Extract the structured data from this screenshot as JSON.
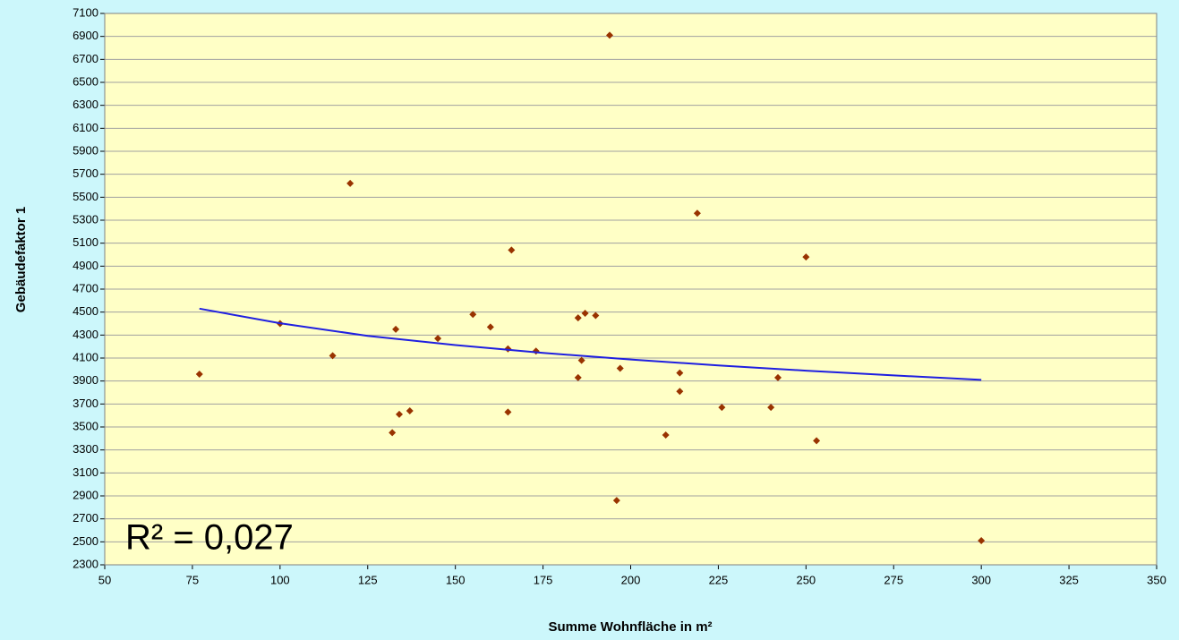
{
  "chart_data": {
    "type": "scatter",
    "xlabel": "Summe Wohnfläche in m²",
    "ylabel": "Gebäudefaktor 1",
    "annotation": "R² = 0,027",
    "xlim": [
      50,
      350
    ],
    "xticks": [
      50,
      75,
      100,
      125,
      150,
      175,
      200,
      225,
      250,
      275,
      300,
      325,
      350
    ],
    "ylim": [
      2300,
      7100
    ],
    "yticks": [
      2300,
      2500,
      2700,
      2900,
      3100,
      3300,
      3500,
      3700,
      3900,
      4100,
      4300,
      4500,
      4700,
      4900,
      5100,
      5300,
      5500,
      5700,
      5900,
      6100,
      6300,
      6500,
      6700,
      6900,
      7100
    ],
    "grid": true,
    "points": {
      "color": "#993300",
      "x": [
        77,
        100,
        115,
        120,
        132,
        133,
        134,
        137,
        145,
        155,
        160,
        165,
        165,
        166,
        173,
        185,
        185,
        186,
        187,
        190,
        194,
        196,
        197,
        210,
        214,
        214,
        219,
        226,
        240,
        242,
        250,
        253,
        300
      ],
      "values": [
        3960,
        4400,
        4120,
        5620,
        3450,
        4350,
        3610,
        3640,
        4270,
        4480,
        4370,
        4180,
        3630,
        5040,
        4160,
        4450,
        3930,
        4080,
        4490,
        4470,
        6910,
        2860,
        4010,
        3430,
        3970,
        3810,
        5360,
        3670,
        3670,
        3930,
        4980,
        3380,
        2510
      ]
    },
    "trendline": {
      "color": "#1f1fe0",
      "x": [
        77,
        100,
        125,
        150,
        175,
        200,
        225,
        250,
        275,
        300
      ],
      "values": [
        4530,
        4403,
        4293,
        4213,
        4145,
        4087,
        4036,
        3990,
        3949,
        3910
      ]
    }
  }
}
